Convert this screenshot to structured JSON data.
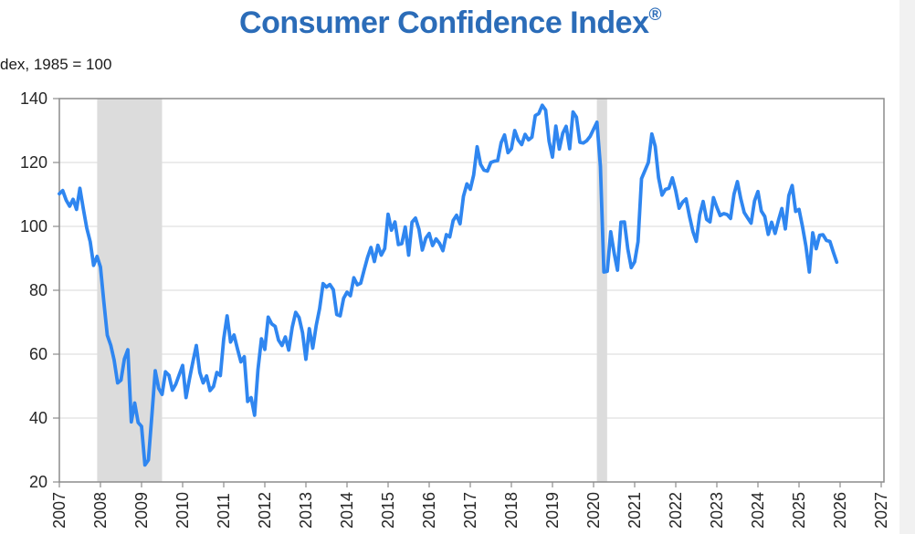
{
  "header": {
    "title": "Consumer Confidence Index",
    "registered_mark": "®",
    "axis_caption": "dex, 1985 = 100"
  },
  "chart_data": {
    "type": "line",
    "title": "Consumer Confidence Index®",
    "ylabel": "dex, 1985 = 100",
    "xlabel": "",
    "ylim": [
      20,
      140
    ],
    "xlim": [
      2007,
      2027.1
    ],
    "grid": "horizontal",
    "legend": "none",
    "y_ticks": [
      20,
      40,
      60,
      80,
      100,
      120,
      140
    ],
    "x_tick_labels": [
      "2007",
      "2008",
      "2009",
      "2010",
      "2011",
      "2012",
      "2013",
      "2014",
      "2015",
      "2016",
      "2017",
      "2018",
      "2019",
      "2020",
      "2021",
      "2022",
      "2023",
      "2024",
      "2025",
      "2026",
      "2027"
    ],
    "recession_bands": [
      {
        "start": 2007.92,
        "end": 2009.5
      },
      {
        "start": 2020.08,
        "end": 2020.33
      }
    ],
    "colors": {
      "line": "#2F86F0",
      "recession_band": "#dcdcdc",
      "gridline": "#d9d9d9",
      "frame": "#8c8c8c",
      "tick_label": "#262626",
      "title": "#2B6CB8"
    },
    "series": [
      {
        "name": "Consumer Confidence Index",
        "frequency": "monthly",
        "start_year": 2007,
        "start_month": 1,
        "values": [
          110.2,
          111.2,
          108.2,
          106.3,
          108.5,
          105.3,
          111.9,
          105.6,
          99.5,
          95.2,
          87.8,
          90.6,
          87.3,
          76.4,
          65.9,
          62.8,
          58.1,
          51.0,
          51.9,
          58.5,
          61.4,
          38.8,
          44.7,
          38.6,
          37.4,
          25.3,
          26.9,
          40.8,
          54.8,
          49.3,
          47.4,
          54.5,
          53.4,
          48.7,
          50.6,
          53.6,
          56.5,
          46.4,
          52.3,
          57.7,
          62.7,
          54.3,
          51.0,
          53.2,
          48.6,
          49.9,
          54.3,
          53.3,
          64.8,
          72.0,
          63.8,
          66.0,
          61.7,
          57.6,
          59.2,
          45.2,
          46.4,
          40.9,
          55.2,
          64.8,
          61.5,
          71.6,
          69.5,
          68.7,
          64.4,
          62.7,
          65.4,
          61.3,
          68.4,
          73.1,
          71.5,
          66.7,
          58.4,
          68.0,
          61.9,
          69.0,
          74.3,
          82.1,
          81.0,
          81.8,
          80.2,
          72.4,
          72.0,
          77.5,
          79.4,
          78.3,
          83.9,
          81.7,
          82.2,
          86.4,
          90.3,
          93.4,
          89.0,
          94.1,
          91.0,
          93.1,
          103.8,
          98.8,
          101.4,
          94.3,
          94.6,
          99.8,
          91.0,
          101.3,
          102.6,
          99.1,
          92.6,
          96.3,
          97.8,
          94.0,
          96.1,
          94.7,
          92.4,
          97.4,
          96.7,
          101.8,
          103.5,
          100.8,
          109.4,
          113.3,
          111.6,
          116.1,
          124.9,
          119.4,
          117.6,
          117.3,
          120.0,
          120.4,
          120.6,
          126.2,
          128.6,
          123.1,
          124.3,
          130.0,
          127.0,
          125.6,
          128.8,
          127.1,
          127.9,
          134.7,
          135.3,
          137.9,
          136.4,
          126.6,
          121.7,
          131.4,
          124.2,
          129.2,
          131.3,
          124.3,
          135.8,
          134.2,
          126.3,
          126.1,
          126.8,
          128.2,
          130.4,
          132.6,
          118.8,
          85.7,
          85.9,
          98.3,
          91.7,
          86.3,
          101.3,
          101.4,
          92.9,
          87.1,
          88.9,
          95.2,
          114.9,
          117.5,
          120.0,
          128.9,
          125.1,
          115.2,
          109.8,
          111.6,
          111.9,
          115.2,
          111.1,
          105.7,
          107.6,
          108.6,
          103.2,
          98.4,
          95.3,
          103.6,
          107.8,
          102.2,
          101.4,
          109.0,
          106.0,
          103.4,
          104.0,
          103.7,
          102.5,
          110.1,
          114.0,
          108.7,
          104.3,
          102.6,
          101.0,
          108.0,
          110.9,
          104.8,
          103.1,
          97.5,
          101.3,
          97.8,
          101.9,
          105.6,
          99.2,
          109.6,
          112.8,
          104.7,
          105.3,
          100.1,
          93.9,
          85.7,
          98.0,
          93.0,
          97.2,
          97.4,
          95.6,
          95.3,
          92.0,
          88.8
        ]
      }
    ]
  }
}
